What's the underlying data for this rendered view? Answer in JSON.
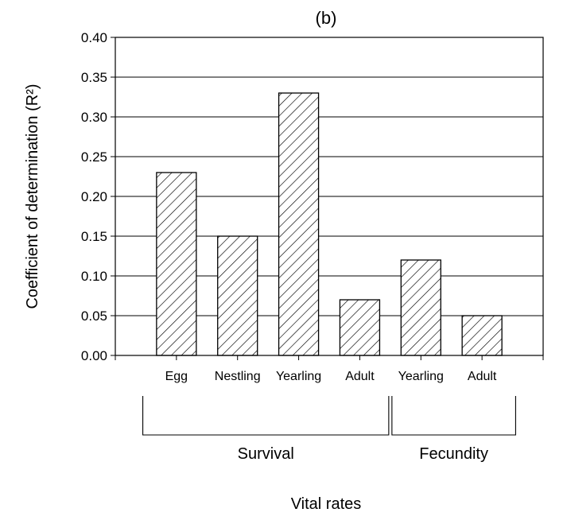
{
  "chart_data": {
    "type": "bar",
    "title": "(b)",
    "ylabel": "Coefficient of determination (R²)",
    "xlabel": "Vital rates",
    "categories": [
      "Egg",
      "Nestling",
      "Yearling",
      "Adult",
      "Yearling",
      "Adult"
    ],
    "values": [
      0.23,
      0.15,
      0.33,
      0.07,
      0.12,
      0.05
    ],
    "ylim": [
      0,
      0.4
    ],
    "yticks": [
      "0.00",
      "0.05",
      "0.10",
      "0.15",
      "0.20",
      "0.25",
      "0.30",
      "0.35",
      "0.40"
    ],
    "grid": true,
    "bar_fill": "diagonal-hatch",
    "groups": [
      {
        "label": "Survival",
        "categories": [
          "Egg",
          "Nestling",
          "Yearling",
          "Adult"
        ]
      },
      {
        "label": "Fecundity",
        "categories": [
          "Yearling",
          "Adult"
        ]
      }
    ]
  }
}
